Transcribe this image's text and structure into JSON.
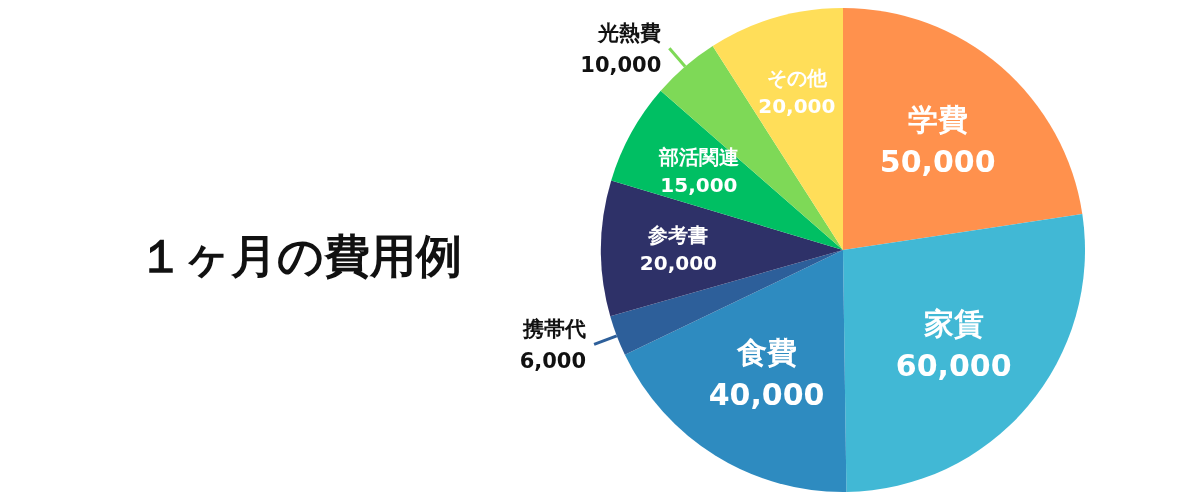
{
  "chart_data": {
    "type": "pie",
    "title": "１ヶ月の費用例",
    "categories": [
      "学費",
      "家賃",
      "食費",
      "携帯代",
      "参考書",
      "部活関連",
      "光熱費",
      "その他"
    ],
    "values": [
      50000,
      60000,
      40000,
      6000,
      20000,
      15000,
      10000,
      20000
    ],
    "value_labels": [
      "50,000",
      "60,000",
      "40,000",
      "6,000",
      "20,000",
      "15,000",
      "10,000",
      "20,000"
    ],
    "colors": [
      "#ff914d",
      "#41b8d5",
      "#2e8bc0",
      "#2d5f9a",
      "#2e3168",
      "#00bf63",
      "#7ed957",
      "#ffde59"
    ]
  }
}
